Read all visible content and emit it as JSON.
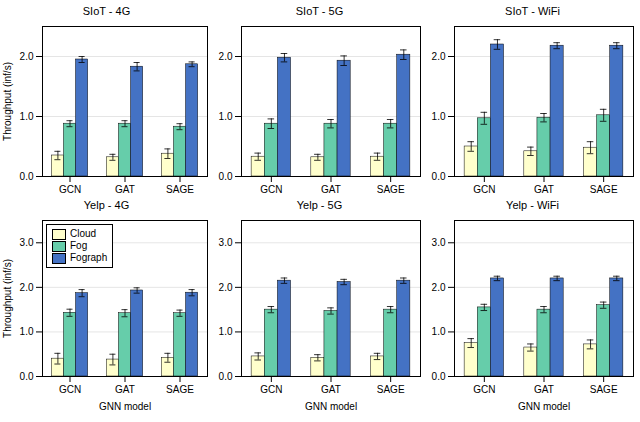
{
  "chart_data": [
    {
      "type": "bar",
      "title": "SIoT - 4G",
      "categories": [
        "GCN",
        "GAT",
        "SAGE"
      ],
      "series": [
        {
          "name": "Cloud",
          "color": "#ffffcc",
          "values": [
            0.35,
            0.32,
            0.38
          ],
          "errors": [
            0.07,
            0.05,
            0.08
          ]
        },
        {
          "name": "Fog",
          "color": "#66cdaa",
          "values": [
            0.88,
            0.88,
            0.83
          ],
          "errors": [
            0.05,
            0.05,
            0.05
          ]
        },
        {
          "name": "Fograph",
          "color": "#4472c4",
          "values": [
            1.95,
            1.83,
            1.87
          ],
          "errors": [
            0.05,
            0.07,
            0.04
          ]
        }
      ],
      "ylim": [
        0,
        2.5
      ],
      "yticks": [
        0,
        1,
        2
      ],
      "grid": true,
      "ylabel": "Throughput (inf/s)"
    },
    {
      "type": "bar",
      "title": "SIoT - 5G",
      "categories": [
        "GCN",
        "GAT",
        "SAGE"
      ],
      "series": [
        {
          "name": "Cloud",
          "color": "#ffffcc",
          "values": [
            0.33,
            0.32,
            0.33
          ],
          "errors": [
            0.06,
            0.05,
            0.06
          ]
        },
        {
          "name": "Fog",
          "color": "#66cdaa",
          "values": [
            0.88,
            0.88,
            0.88
          ],
          "errors": [
            0.08,
            0.07,
            0.07
          ]
        },
        {
          "name": "Fograph",
          "color": "#4472c4",
          "values": [
            1.98,
            1.93,
            2.03
          ],
          "errors": [
            0.07,
            0.08,
            0.08
          ]
        }
      ],
      "ylim": [
        0,
        2.5
      ],
      "yticks": [
        0,
        1,
        2
      ],
      "grid": true
    },
    {
      "type": "bar",
      "title": "SIoT - WiFi",
      "categories": [
        "GCN",
        "GAT",
        "SAGE"
      ],
      "series": [
        {
          "name": "Cloud",
          "color": "#ffffcc",
          "values": [
            0.5,
            0.42,
            0.48
          ],
          "errors": [
            0.08,
            0.07,
            0.1
          ]
        },
        {
          "name": "Fog",
          "color": "#66cdaa",
          "values": [
            0.97,
            0.98,
            1.02
          ],
          "errors": [
            0.1,
            0.07,
            0.1
          ]
        },
        {
          "name": "Fograph",
          "color": "#4472c4",
          "values": [
            2.2,
            2.18,
            2.18
          ],
          "errors": [
            0.08,
            0.05,
            0.05
          ]
        }
      ],
      "ylim": [
        0,
        2.5
      ],
      "yticks": [
        0,
        1,
        2
      ],
      "grid": true
    },
    {
      "type": "bar",
      "title": "Yelp - 4G",
      "categories": [
        "GCN",
        "GAT",
        "SAGE"
      ],
      "series": [
        {
          "name": "Cloud",
          "color": "#ffffcc",
          "values": [
            0.4,
            0.38,
            0.42
          ],
          "errors": [
            0.12,
            0.12,
            0.1
          ]
        },
        {
          "name": "Fog",
          "color": "#66cdaa",
          "values": [
            1.43,
            1.42,
            1.42
          ],
          "errors": [
            0.08,
            0.08,
            0.07
          ]
        },
        {
          "name": "Fograph",
          "color": "#4472c4",
          "values": [
            1.87,
            1.93,
            1.88
          ],
          "errors": [
            0.08,
            0.06,
            0.07
          ]
        }
      ],
      "ylim": [
        0,
        3.5
      ],
      "yticks": [
        0,
        1,
        2,
        3
      ],
      "grid": true,
      "ylabel": "Throughput (inf/s)",
      "xlabel": "GNN model",
      "legend": "upper left"
    },
    {
      "type": "bar",
      "title": "Yelp - 5G",
      "categories": [
        "GCN",
        "GAT",
        "SAGE"
      ],
      "series": [
        {
          "name": "Cloud",
          "color": "#ffffcc",
          "values": [
            0.45,
            0.42,
            0.45
          ],
          "errors": [
            0.08,
            0.07,
            0.07
          ]
        },
        {
          "name": "Fog",
          "color": "#66cdaa",
          "values": [
            1.5,
            1.47,
            1.5
          ],
          "errors": [
            0.07,
            0.07,
            0.07
          ]
        },
        {
          "name": "Fograph",
          "color": "#4472c4",
          "values": [
            2.15,
            2.12,
            2.15
          ],
          "errors": [
            0.06,
            0.06,
            0.06
          ]
        }
      ],
      "ylim": [
        0,
        3.5
      ],
      "yticks": [
        0,
        1,
        2,
        3
      ],
      "grid": true,
      "xlabel": "GNN model"
    },
    {
      "type": "bar",
      "title": "Yelp - WiFi",
      "categories": [
        "GCN",
        "GAT",
        "SAGE"
      ],
      "series": [
        {
          "name": "Cloud",
          "color": "#ffffcc",
          "values": [
            0.75,
            0.65,
            0.72
          ],
          "errors": [
            0.1,
            0.08,
            0.1
          ]
        },
        {
          "name": "Fog",
          "color": "#66cdaa",
          "values": [
            1.55,
            1.5,
            1.6
          ],
          "errors": [
            0.07,
            0.07,
            0.07
          ]
        },
        {
          "name": "Fograph",
          "color": "#4472c4",
          "values": [
            2.2,
            2.2,
            2.2
          ],
          "errors": [
            0.05,
            0.05,
            0.05
          ]
        }
      ],
      "ylim": [
        0,
        3.5
      ],
      "yticks": [
        0,
        1,
        2,
        3
      ],
      "grid": true,
      "xlabel": "GNN model"
    }
  ]
}
